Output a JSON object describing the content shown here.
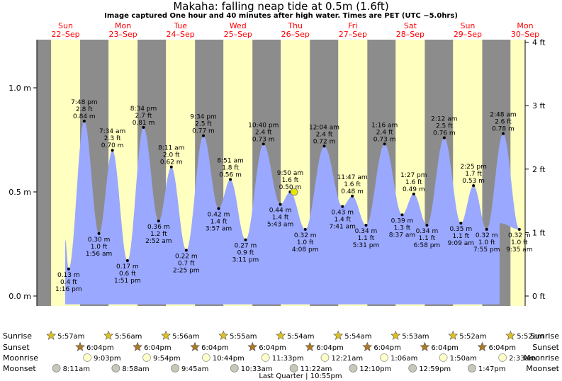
{
  "title": "Makaha: falling  neap tide at 0.5m (1.6ft)",
  "subtitle": "Image captured One hour and 40 minutes after high water. Times are PET (UTC −5.0hrs)",
  "colors": {
    "night": "#8c8c8c",
    "day": "#ffffc0",
    "water": "#9aa8ff",
    "date_text": "#ff0000",
    "current_marker": "#e6e600"
  },
  "chart_data": {
    "type": "area",
    "title": "Makaha: falling  neap tide at 0.5m (1.6ft)",
    "xlabel": "",
    "ylabel": "",
    "y_left_unit": "m",
    "y_right_unit": "ft",
    "ylim_m": [
      -0.05,
      1.23
    ],
    "y_left_ticks": [
      {
        "value": 0.0,
        "label": "0.0 m"
      },
      {
        "value": 0.5,
        "label": "0.5 m"
      },
      {
        "value": 1.0,
        "label": "1.0 m"
      }
    ],
    "y_right_ticks": [
      {
        "value": 0,
        "label": "0 ft"
      },
      {
        "value": 1,
        "label": "1 ft"
      },
      {
        "value": 2,
        "label": "2 ft"
      },
      {
        "value": 3,
        "label": "3 ft"
      },
      {
        "value": 4,
        "label": "4 ft"
      }
    ],
    "days": [
      {
        "dow": "Sun",
        "date": "22–Sep"
      },
      {
        "dow": "Mon",
        "date": "23–Sep"
      },
      {
        "dow": "Tue",
        "date": "24–Sep"
      },
      {
        "dow": "Wed",
        "date": "25–Sep"
      },
      {
        "dow": "Thu",
        "date": "26–Sep"
      },
      {
        "dow": "Fri",
        "date": "27–Sep"
      },
      {
        "dow": "Sat",
        "date": "28–Sep"
      },
      {
        "dow": "Sun",
        "date": "29–Sep"
      },
      {
        "dow": "Mon",
        "date": "30–Sep"
      }
    ],
    "start_date": "2024-09-22",
    "start_height_m": 0.27,
    "end_height_m": 0.35,
    "sunrise_hours": [
      5.95,
      5.93,
      5.93,
      5.92,
      5.9,
      5.9,
      5.88,
      5.87,
      5.87
    ],
    "sunset_hours": [
      18.07,
      18.07,
      18.07,
      18.07,
      18.07,
      18.07,
      18.07,
      18.07
    ],
    "tides": [
      {
        "day": 0,
        "hour": 13.27,
        "time": "1:16 pm",
        "ft": "0.4 ft",
        "m": 0.13,
        "m_label": "0.13 m",
        "type": "low"
      },
      {
        "day": 0,
        "hour": 19.8,
        "time": "7:48 pm",
        "ft": "2.8 ft",
        "m": 0.84,
        "m_label": "0.84 m",
        "type": "high"
      },
      {
        "day": 1,
        "hour": 1.93,
        "time": "1:56 am",
        "ft": "1.0 ft",
        "m": 0.3,
        "m_label": "0.30 m",
        "type": "low"
      },
      {
        "day": 1,
        "hour": 7.57,
        "time": "7:34 am",
        "ft": "2.3 ft",
        "m": 0.7,
        "m_label": "0.70 m",
        "type": "high"
      },
      {
        "day": 1,
        "hour": 13.85,
        "time": "1:51 pm",
        "ft": "0.6 ft",
        "m": 0.17,
        "m_label": "0.17 m",
        "type": "low"
      },
      {
        "day": 1,
        "hour": 20.57,
        "time": "8:34 pm",
        "ft": "2.7 ft",
        "m": 0.81,
        "m_label": "0.81 m",
        "type": "high"
      },
      {
        "day": 2,
        "hour": 2.87,
        "time": "2:52 am",
        "ft": "1.2 ft",
        "m": 0.36,
        "m_label": "0.36 m",
        "type": "low"
      },
      {
        "day": 2,
        "hour": 8.18,
        "time": "8:11 am",
        "ft": "2.0 ft",
        "m": 0.62,
        "m_label": "0.62 m",
        "type": "high"
      },
      {
        "day": 2,
        "hour": 14.42,
        "time": "2:25 pm",
        "ft": "0.7 ft",
        "m": 0.22,
        "m_label": "0.22 m",
        "type": "low"
      },
      {
        "day": 2,
        "hour": 21.57,
        "time": "9:34 pm",
        "ft": "2.5 ft",
        "m": 0.77,
        "m_label": "0.77 m",
        "type": "high"
      },
      {
        "day": 3,
        "hour": 3.95,
        "time": "3:57 am",
        "ft": "1.4 ft",
        "m": 0.42,
        "m_label": "0.42 m",
        "type": "low"
      },
      {
        "day": 3,
        "hour": 8.85,
        "time": "8:51 am",
        "ft": "1.8 ft",
        "m": 0.56,
        "m_label": "0.56 m",
        "type": "high"
      },
      {
        "day": 3,
        "hour": 15.18,
        "time": "3:11 pm",
        "ft": "0.9 ft",
        "m": 0.27,
        "m_label": "0.27 m",
        "type": "low"
      },
      {
        "day": 3,
        "hour": 22.67,
        "time": "10:40 pm",
        "ft": "2.4 ft",
        "m": 0.73,
        "m_label": "0.73 m",
        "type": "high"
      },
      {
        "day": 4,
        "hour": 5.72,
        "time": "5:43 am",
        "ft": "1.4 ft",
        "m": 0.44,
        "m_label": "0.44 m",
        "type": "low"
      },
      {
        "day": 4,
        "hour": 9.83,
        "time": "9:50 am",
        "ft": "1.6 ft",
        "m": 0.5,
        "m_label": "0.50 m",
        "type": "high"
      },
      {
        "day": 4,
        "hour": 16.13,
        "time": "4:08 pm",
        "ft": "1.0 ft",
        "m": 0.32,
        "m_label": "0.32 m",
        "type": "low"
      },
      {
        "day": 5,
        "hour": 0.07,
        "time": "12:04 am",
        "ft": "2.4 ft",
        "m": 0.72,
        "m_label": "0.72 m",
        "type": "high"
      },
      {
        "day": 5,
        "hour": 7.68,
        "time": "7:41 am",
        "ft": "1.4 ft",
        "m": 0.43,
        "m_label": "0.43 m",
        "type": "low"
      },
      {
        "day": 5,
        "hour": 11.78,
        "time": "11:47 am",
        "ft": "1.6 ft",
        "m": 0.48,
        "m_label": "0.48 m",
        "type": "high"
      },
      {
        "day": 5,
        "hour": 17.52,
        "time": "5:31 pm",
        "ft": "1.1 ft",
        "m": 0.34,
        "m_label": "0.34 m",
        "type": "low"
      },
      {
        "day": 6,
        "hour": 1.27,
        "time": "1:16 am",
        "ft": "2.4 ft",
        "m": 0.73,
        "m_label": "0.73 m",
        "type": "high"
      },
      {
        "day": 6,
        "hour": 8.62,
        "time": "8:37 am",
        "ft": "1.3 ft",
        "m": 0.39,
        "m_label": "0.39 m",
        "type": "low"
      },
      {
        "day": 6,
        "hour": 13.45,
        "time": "1:27 pm",
        "ft": "1.6 ft",
        "m": 0.49,
        "m_label": "0.49 m",
        "type": "high"
      },
      {
        "day": 6,
        "hour": 18.97,
        "time": "6:58 pm",
        "ft": "1.1 ft",
        "m": 0.34,
        "m_label": "0.34 m",
        "type": "low"
      },
      {
        "day": 7,
        "hour": 2.2,
        "time": "2:12 am",
        "ft": "2.5 ft",
        "m": 0.76,
        "m_label": "0.76 m",
        "type": "high"
      },
      {
        "day": 7,
        "hour": 9.15,
        "time": "9:09 am",
        "ft": "1.1 ft",
        "m": 0.35,
        "m_label": "0.35 m",
        "type": "low"
      },
      {
        "day": 7,
        "hour": 14.42,
        "time": "2:25 pm",
        "ft": "1.7 ft",
        "m": 0.53,
        "m_label": "0.53 m",
        "type": "high"
      },
      {
        "day": 7,
        "hour": 19.92,
        "time": "7:55 pm",
        "ft": "1.0 ft",
        "m": 0.32,
        "m_label": "0.32 m",
        "type": "low"
      },
      {
        "day": 8,
        "hour": 2.8,
        "time": "2:48 am",
        "ft": "2.6 ft",
        "m": 0.78,
        "m_label": "0.78 m",
        "type": "high"
      },
      {
        "day": 8,
        "hour": 9.58,
        "time": "9:35 am",
        "ft": "1.0 ft",
        "m": 0.32,
        "m_label": "0.32 m",
        "type": "low"
      }
    ],
    "current": {
      "day": 4,
      "hour": 11.5,
      "m": 0.5
    }
  },
  "astro": {
    "row_labels": [
      "Sunrise",
      "Sunset",
      "Moonrise",
      "Moonset"
    ],
    "sunrise": [
      {
        "day": 0,
        "hour": 5.95,
        "label": "5:57am"
      },
      {
        "day": 1,
        "hour": 5.93,
        "label": "5:56am"
      },
      {
        "day": 2,
        "hour": 5.93,
        "label": "5:56am"
      },
      {
        "day": 3,
        "hour": 5.92,
        "label": "5:55am"
      },
      {
        "day": 4,
        "hour": 5.9,
        "label": "5:54am"
      },
      {
        "day": 5,
        "hour": 5.9,
        "label": "5:54am"
      },
      {
        "day": 6,
        "hour": 5.88,
        "label": "5:53am"
      },
      {
        "day": 7,
        "hour": 5.87,
        "label": "5:52am"
      },
      {
        "day": 8,
        "hour": 5.87,
        "label": "5:52am"
      }
    ],
    "sunset": [
      {
        "day": 0,
        "hour": 18.07,
        "label": "6:04pm"
      },
      {
        "day": 1,
        "hour": 18.07,
        "label": "6:04pm"
      },
      {
        "day": 2,
        "hour": 18.07,
        "label": "6:04pm"
      },
      {
        "day": 3,
        "hour": 18.07,
        "label": "6:04pm"
      },
      {
        "day": 4,
        "hour": 18.07,
        "label": "6:04pm"
      },
      {
        "day": 5,
        "hour": 18.07,
        "label": "6:04pm"
      },
      {
        "day": 6,
        "hour": 18.07,
        "label": "6:04pm"
      },
      {
        "day": 7,
        "hour": 18.07,
        "label": "6:04pm"
      }
    ],
    "moonrise": [
      {
        "day": 0,
        "hour": 21.05,
        "label": "9:03pm"
      },
      {
        "day": 1,
        "hour": 21.9,
        "label": "9:54pm"
      },
      {
        "day": 2,
        "hour": 22.73,
        "label": "10:44pm"
      },
      {
        "day": 3,
        "hour": 23.55,
        "label": "11:33pm"
      },
      {
        "day": 5,
        "hour": 0.35,
        "label": "12:21am"
      },
      {
        "day": 6,
        "hour": 1.1,
        "label": "1:06am"
      },
      {
        "day": 7,
        "hour": 1.83,
        "label": "1:50am"
      },
      {
        "day": 8,
        "hour": 2.55,
        "label": "2:33am"
      }
    ],
    "moonset": [
      {
        "day": 0,
        "hour": 8.18,
        "label": "8:11am"
      },
      {
        "day": 1,
        "hour": 8.97,
        "label": "8:58am"
      },
      {
        "day": 2,
        "hour": 9.75,
        "label": "9:45am"
      },
      {
        "day": 3,
        "hour": 10.55,
        "label": "10:33am"
      },
      {
        "day": 4,
        "hour": 11.37,
        "label": "11:22am"
      },
      {
        "day": 5,
        "hour": 12.17,
        "label": "12:10pm"
      },
      {
        "day": 6,
        "hour": 12.98,
        "label": "12:59pm"
      },
      {
        "day": 7,
        "hour": 13.78,
        "label": "1:47pm"
      }
    ],
    "moon_phase": "Last Quarter | 10:55pm"
  }
}
